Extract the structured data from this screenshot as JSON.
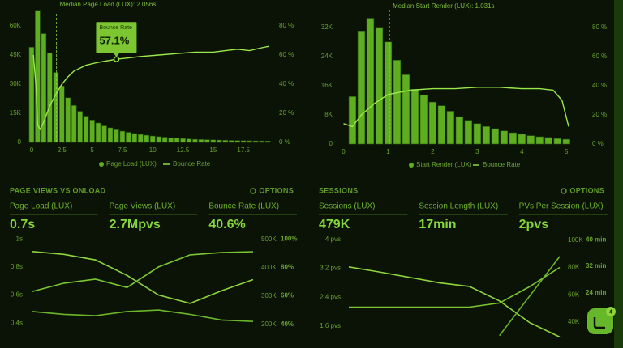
{
  "top_charts": [
    {
      "annotation": "Median Page Load (LUX): 2.056s",
      "median": 2.056,
      "xlim": [
        -0.6,
        19.9
      ],
      "xticks": [
        0,
        2.5,
        5,
        7.5,
        10,
        12.5,
        15,
        17.5
      ],
      "ylim": [
        0,
        71250
      ],
      "yticks": [
        0,
        {
          "value": 15000,
          "label": "15K"
        },
        {
          "value": 30000,
          "label": "30K"
        },
        {
          "value": 45000,
          "label": "45K"
        },
        {
          "value": 60000,
          "label": "60K"
        }
      ],
      "y2lim": [
        0,
        95
      ],
      "y2ticks": [
        {
          "value": 0,
          "label": "0 %"
        },
        {
          "value": 20,
          "label": "20 %"
        },
        {
          "value": 40,
          "label": "40 %"
        },
        {
          "value": 60,
          "label": "60 %"
        },
        {
          "value": 80,
          "label": "80 %"
        }
      ],
      "tooltip": {
        "title": "Bounce Rate",
        "x": 7,
        "value": 57.1,
        "label": "57.1%"
      },
      "bars": {
        "name": "Page Load (LUX)",
        "color": "#5fae22",
        "x": [
          0,
          0.5,
          1,
          1.5,
          2,
          2.5,
          3,
          3.5,
          4,
          4.5,
          5,
          5.5,
          6,
          6.5,
          7,
          7.5,
          8,
          8.5,
          9,
          9.5,
          10,
          10.5,
          11,
          11.5,
          12,
          12.5,
          13,
          13.5,
          14,
          14.5,
          15,
          15.5,
          16,
          16.5,
          17,
          17.5,
          18,
          18.5,
          19,
          19.5
        ],
        "values": [
          49000,
          68000,
          56000,
          46000,
          36000,
          29000,
          23000,
          19000,
          16000,
          13500,
          11500,
          10000,
          8500,
          7500,
          6500,
          5800,
          5200,
          4600,
          4100,
          3700,
          3300,
          3000,
          2700,
          2400,
          2200,
          2000,
          1800,
          1600,
          1500,
          1400,
          1300,
          1200,
          1100,
          1000,
          950,
          900,
          850,
          800,
          750,
          700
        ]
      },
      "line": {
        "name": "Bounce Rate",
        "color": "#9be84a",
        "axis": "y2",
        "x": [
          0.15,
          0.35,
          0.5,
          0.7,
          1,
          1.5,
          2,
          2.5,
          3,
          3.5,
          4.5,
          5.5,
          7,
          8,
          9,
          10.5,
          12,
          13.5,
          15,
          16,
          17,
          18,
          19,
          19.6
        ],
        "values": [
          60,
          40,
          12,
          9,
          14,
          25,
          33,
          40,
          45,
          49,
          53,
          55,
          57.1,
          58,
          59,
          60,
          61,
          62,
          62,
          63,
          64,
          63,
          65,
          66
        ]
      }
    },
    {
      "annotation": "Median Start Render (LUX): 1.031s",
      "median": 1.031,
      "xlim": [
        -0.1,
        5.25
      ],
      "xticks": [
        0,
        1,
        2,
        3,
        4,
        5
      ],
      "ylim": [
        0,
        39500
      ],
      "yticks": [
        0,
        {
          "value": 8000,
          "label": "8K"
        },
        {
          "value": 16000,
          "label": "16K"
        },
        {
          "value": 24000,
          "label": "24K"
        },
        {
          "value": 32000,
          "label": "32K"
        }
      ],
      "y2lim": [
        0,
        98.9
      ],
      "y2ticks": [
        {
          "value": 0,
          "label": "0 %"
        },
        {
          "value": 20,
          "label": "20 %"
        },
        {
          "value": 40,
          "label": "40 %"
        },
        {
          "value": 60,
          "label": "60 %"
        },
        {
          "value": 80,
          "label": "80 %"
        }
      ],
      "bars": {
        "name": "Start Render (LUX)",
        "color": "#5fae22",
        "x": [
          0.2,
          0.4,
          0.6,
          0.8,
          1,
          1.2,
          1.4,
          1.6,
          1.8,
          2,
          2.2,
          2.4,
          2.6,
          2.8,
          3,
          3.2,
          3.4,
          3.6,
          3.8,
          4,
          4.2,
          4.4,
          4.6,
          4.8,
          5
        ],
        "values": [
          13000,
          31000,
          34500,
          32000,
          28000,
          23000,
          19000,
          15000,
          13500,
          11500,
          10500,
          9000,
          7500,
          6500,
          5600,
          4800,
          4200,
          3600,
          3100,
          2700,
          2300,
          2000,
          1800,
          1500,
          1300
        ]
      },
      "line": {
        "name": "Bounce Rate",
        "color": "#9be84a",
        "axis": "y2",
        "x": [
          0,
          0.2,
          0.4,
          0.7,
          1,
          1.5,
          2,
          2.5,
          3,
          3.5,
          4,
          4.4,
          4.7,
          4.9,
          5.05
        ],
        "values": [
          14,
          12,
          20,
          28,
          34,
          37,
          38,
          38,
          39,
          39,
          38,
          38,
          37,
          30,
          12
        ]
      }
    }
  ],
  "sections": [
    {
      "title": "PAGE VIEWS VS ONLOAD",
      "options": "OPTIONS",
      "metrics": [
        {
          "label": "Page Load (LUX)",
          "value": "0.7s"
        },
        {
          "label": "Page Views (LUX)",
          "value": "2.7Mpvs"
        },
        {
          "label": "Bounce Rate (LUX)",
          "value": "40.6%"
        }
      ],
      "axes": [
        {
          "lim": [
            0.28,
            1.03
          ],
          "ticks": [
            {
              "value": 1,
              "label": "1s"
            },
            {
              "value": 0.8,
              "label": "0.8s"
            },
            {
              "value": 0.6,
              "label": "0.6s"
            },
            {
              "value": 0.4,
              "label": "0.4s"
            }
          ]
        },
        {
          "lim": [
            146000,
            517000
          ],
          "ticks": [
            {
              "value": 500000,
              "label": "500K"
            },
            {
              "value": 400000,
              "label": "400K"
            },
            {
              "value": 300000,
              "label": "300K"
            },
            {
              "value": 200000,
              "label": "200K"
            }
          ]
        },
        {
          "lim": [
            29,
            103
          ],
          "ticks": [
            {
              "value": 100,
              "label": "100%"
            },
            {
              "value": 80,
              "label": "80%"
            },
            {
              "value": 60,
              "label": "60%"
            },
            {
              "value": 40,
              "label": "40%"
            }
          ]
        }
      ],
      "series": [
        {
          "axis": 0,
          "color": "#8fd43c",
          "values": [
            0.91,
            0.89,
            0.85,
            0.74,
            0.6,
            0.54,
            0.63,
            0.71
          ]
        },
        {
          "axis": 1,
          "color": "#7cc632",
          "values": [
            317000,
            346000,
            360000,
            331000,
            403000,
            446000,
            454000,
            457000
          ]
        },
        {
          "axis": 2,
          "color": "#6cb52a",
          "values": [
            49,
            47,
            46,
            49,
            50,
            47,
            43,
            42
          ]
        }
      ]
    },
    {
      "title": "SESSIONS",
      "options": "OPTIONS",
      "metrics": [
        {
          "label": "Sessions (LUX)",
          "value": "479K"
        },
        {
          "label": "Session Length (LUX)",
          "value": "17min"
        },
        {
          "label": "PVs Per Session (LUX)",
          "value": "2pvs"
        }
      ],
      "axes": [
        {
          "lim": [
            1.22,
            4.13
          ],
          "ticks": [
            {
              "value": 4,
              "label": "4 pvs"
            },
            {
              "value": 3.2,
              "label": "3.2 pvs"
            },
            {
              "value": 2.4,
              "label": "2.4 pvs"
            },
            {
              "value": 1.6,
              "label": "1.6 pvs"
            }
          ]
        },
        {
          "lim": [
            27000,
            104000
          ],
          "ticks": [
            {
              "value": 100000,
              "label": "100K"
            },
            {
              "value": 80000,
              "label": "80K"
            },
            {
              "value": 60000,
              "label": "60K"
            },
            {
              "value": 40000,
              "label": "40K"
            }
          ]
        },
        {
          "lim": [
            9.7,
            41.6
          ],
          "ticks": [
            {
              "value": 40,
              "label": "40 min"
            },
            {
              "value": 32,
              "label": "32 min"
            },
            {
              "value": 24,
              "label": "24 min"
            }
          ]
        }
      ],
      "series": [
        {
          "axis": 0,
          "color": "#8fd43c",
          "values": [
            3.24,
            3.1,
            2.95,
            2.8,
            2.7,
            2.3,
            1.7,
            1.3
          ]
        },
        {
          "axis": 1,
          "color": "#7cc632",
          "values": [
            51000,
            51000,
            51000,
            51000,
            51000,
            54000,
            66000,
            80000
          ]
        },
        {
          "axis": 2,
          "color": "#6cb52a",
          "values": [
            null,
            null,
            null,
            null,
            null,
            11,
            23,
            35
          ]
        }
      ]
    }
  ],
  "chat_badge": "4"
}
